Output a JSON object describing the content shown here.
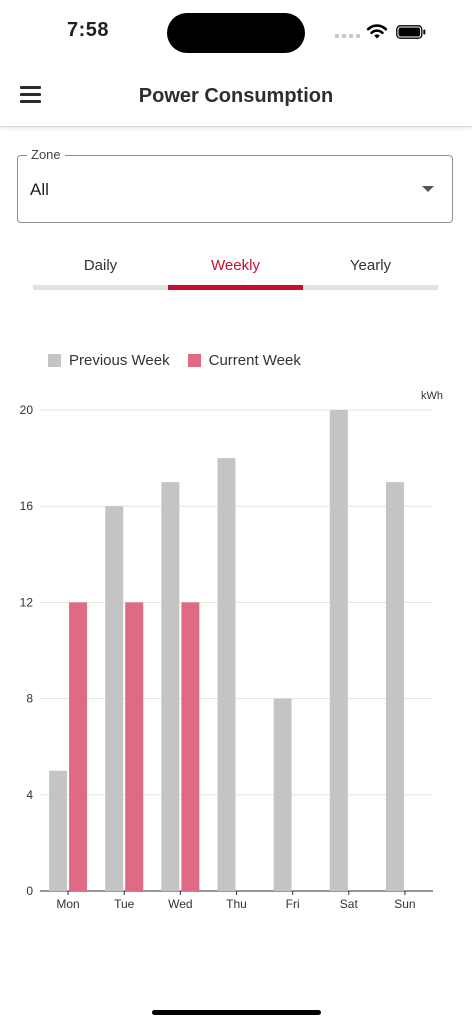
{
  "status_bar": {
    "time": "7:58"
  },
  "header": {
    "title": "Power Consumption",
    "menu_icon": "hamburger-menu-icon"
  },
  "zone": {
    "label": "Zone",
    "value": "All"
  },
  "tabs": [
    {
      "label": "Daily",
      "active": false
    },
    {
      "label": "Weekly",
      "active": true
    },
    {
      "label": "Yearly",
      "active": false
    }
  ],
  "colors": {
    "accent": "#c8102e",
    "previous": "#c4c4c4",
    "current": "#df6a84"
  },
  "chart_data": {
    "type": "bar",
    "categories": [
      "Mon",
      "Tue",
      "Wed",
      "Thu",
      "Fri",
      "Sat",
      "Sun"
    ],
    "series": [
      {
        "name": "Previous Week",
        "values": [
          5,
          16,
          17,
          18,
          8,
          20,
          17
        ]
      },
      {
        "name": "Current Week",
        "values": [
          12,
          12,
          12,
          null,
          null,
          null,
          null
        ]
      }
    ],
    "unit": "kWh",
    "ylim": [
      0,
      20
    ],
    "yticks": [
      0,
      4,
      8,
      12,
      16,
      20
    ],
    "grid": true,
    "legend": "top-left"
  }
}
